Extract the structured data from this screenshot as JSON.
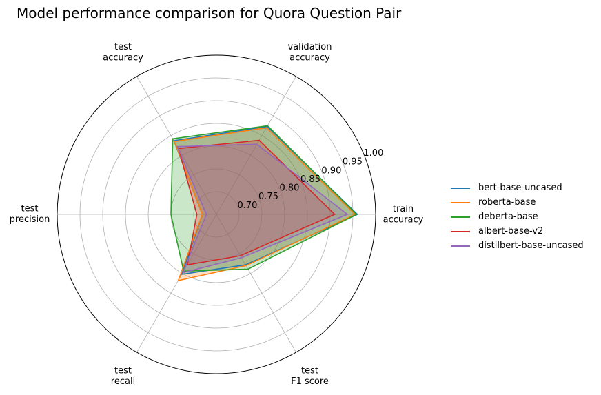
{
  "chart_data": {
    "type": "radar",
    "title": "Model performance comparison for Quora Question Pair",
    "axes": [
      [
        "train",
        "accuracy"
      ],
      [
        "validation",
        "accuracy"
      ],
      [
        "test",
        "accuracy"
      ],
      [
        "test",
        "precision"
      ],
      [
        "test",
        "recall"
      ],
      [
        "test",
        "F1 score"
      ]
    ],
    "rlim": [
      0.65,
      1.0
    ],
    "rticks": [
      "0.70",
      "0.75",
      "0.80",
      "0.85",
      "0.90",
      "0.95",
      "1.00"
    ],
    "rtick_values": [
      0.7,
      0.75,
      0.8,
      0.85,
      0.9,
      0.95,
      1.0
    ],
    "grid": true,
    "legend_position": "right",
    "series": [
      {
        "name": "bert-base-uncased",
        "color": "#1f77b4",
        "values": [
          0.96,
          0.873,
          0.837,
          0.681,
          0.802,
          0.778
        ]
      },
      {
        "name": "roberta-base",
        "color": "#ff7f0e",
        "values": [
          0.955,
          0.87,
          0.835,
          0.681,
          0.818,
          0.78
        ]
      },
      {
        "name": "deberta-base",
        "color": "#2ca02c",
        "values": [
          0.958,
          0.875,
          0.842,
          0.75,
          0.794,
          0.789
        ]
      },
      {
        "name": "albert-base-v2",
        "color": "#d62728",
        "values": [
          0.91,
          0.838,
          0.817,
          0.693,
          0.778,
          0.755
        ]
      },
      {
        "name": "distilbert-base-uncased",
        "color": "#9467bd",
        "values": [
          0.938,
          0.828,
          0.822,
          0.672,
          0.798,
          0.76
        ]
      }
    ]
  }
}
